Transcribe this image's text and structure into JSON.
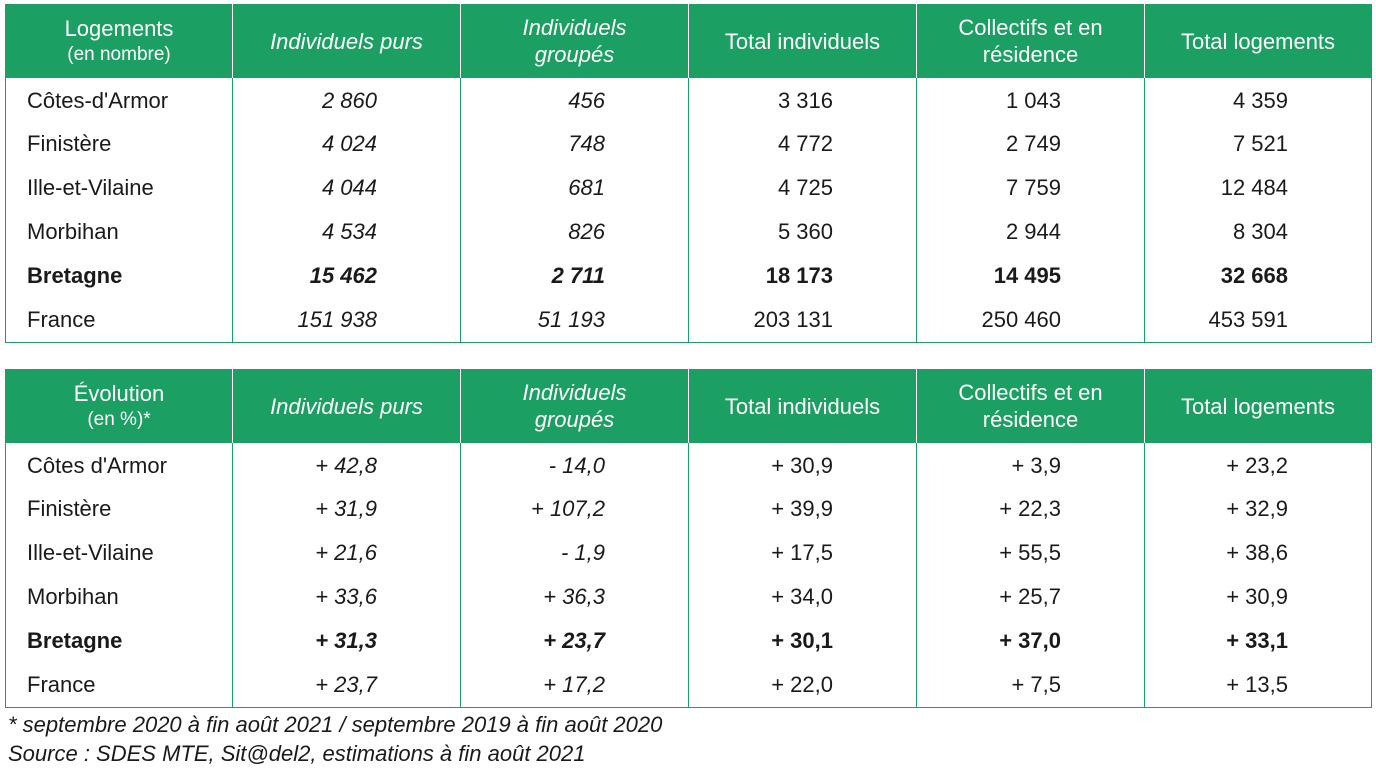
{
  "table_logements": {
    "headers": {
      "c1_line1": "Logements",
      "c1_line2": "(en nombre)",
      "c2": "Individuels purs",
      "c3_line1": "Individuels",
      "c3_line2": "groupés",
      "c4": "Total individuels",
      "c5_line1": "Collectifs et en",
      "c5_line2": "résidence",
      "c6": "Total logements"
    },
    "rows": [
      [
        "Côtes-d'Armor",
        "2 860",
        "456",
        "3 316",
        "1 043",
        "4 359"
      ],
      [
        "Finistère",
        "4 024",
        "748",
        "4 772",
        "2 749",
        "7 521"
      ],
      [
        "Ille-et-Vilaine",
        "4 044",
        "681",
        "4 725",
        "7 759",
        "12 484"
      ],
      [
        "Morbihan",
        "4 534",
        "826",
        "5 360",
        "2 944",
        "8 304"
      ],
      [
        "Bretagne",
        "15 462",
        "2 711",
        "18 173",
        "14 495",
        "32 668"
      ],
      [
        "France",
        "151 938",
        "51 193",
        "203 131",
        "250 460",
        "453 591"
      ]
    ]
  },
  "table_evolution": {
    "headers": {
      "c1_line1": "Évolution",
      "c1_line2": "(en %)*",
      "c2": "Individuels purs",
      "c3_line1": "Individuels",
      "c3_line2": "groupés",
      "c4": "Total individuels",
      "c5_line1": "Collectifs et en",
      "c5_line2": "résidence",
      "c6": "Total logements"
    },
    "rows": [
      [
        "Côtes d'Armor",
        "+ 42,8",
        "- 14,0",
        "+ 30,9",
        "+ 3,9",
        "+ 23,2"
      ],
      [
        "Finistère",
        "+ 31,9",
        "+ 107,2",
        "+ 39,9",
        "+ 22,3",
        "+ 32,9"
      ],
      [
        "Ille-et-Vilaine",
        "+ 21,6",
        "- 1,9",
        "+ 17,5",
        "+ 55,5",
        "+ 38,6"
      ],
      [
        "Morbihan",
        "+ 33,6",
        "+ 36,3",
        "+ 34,0",
        "+ 25,7",
        "+ 30,9"
      ],
      [
        "Bretagne",
        "+ 31,3",
        "+ 23,7",
        "+ 30,1",
        "+ 37,0",
        "+ 33,1"
      ],
      [
        "France",
        "+ 23,7",
        "+ 17,2",
        "+ 22,0",
        "+ 7,5",
        "+ 13,5"
      ]
    ]
  },
  "footnote": "* septembre 2020 à fin août 2021 / septembre 2019 à fin août 2020",
  "source": "Source : SDES MTE, Sit@del2, estimations à fin août 2021",
  "colors": {
    "header_bg": "#1b9f62",
    "header_text": "#ffffff",
    "border": "#1b9f62"
  }
}
